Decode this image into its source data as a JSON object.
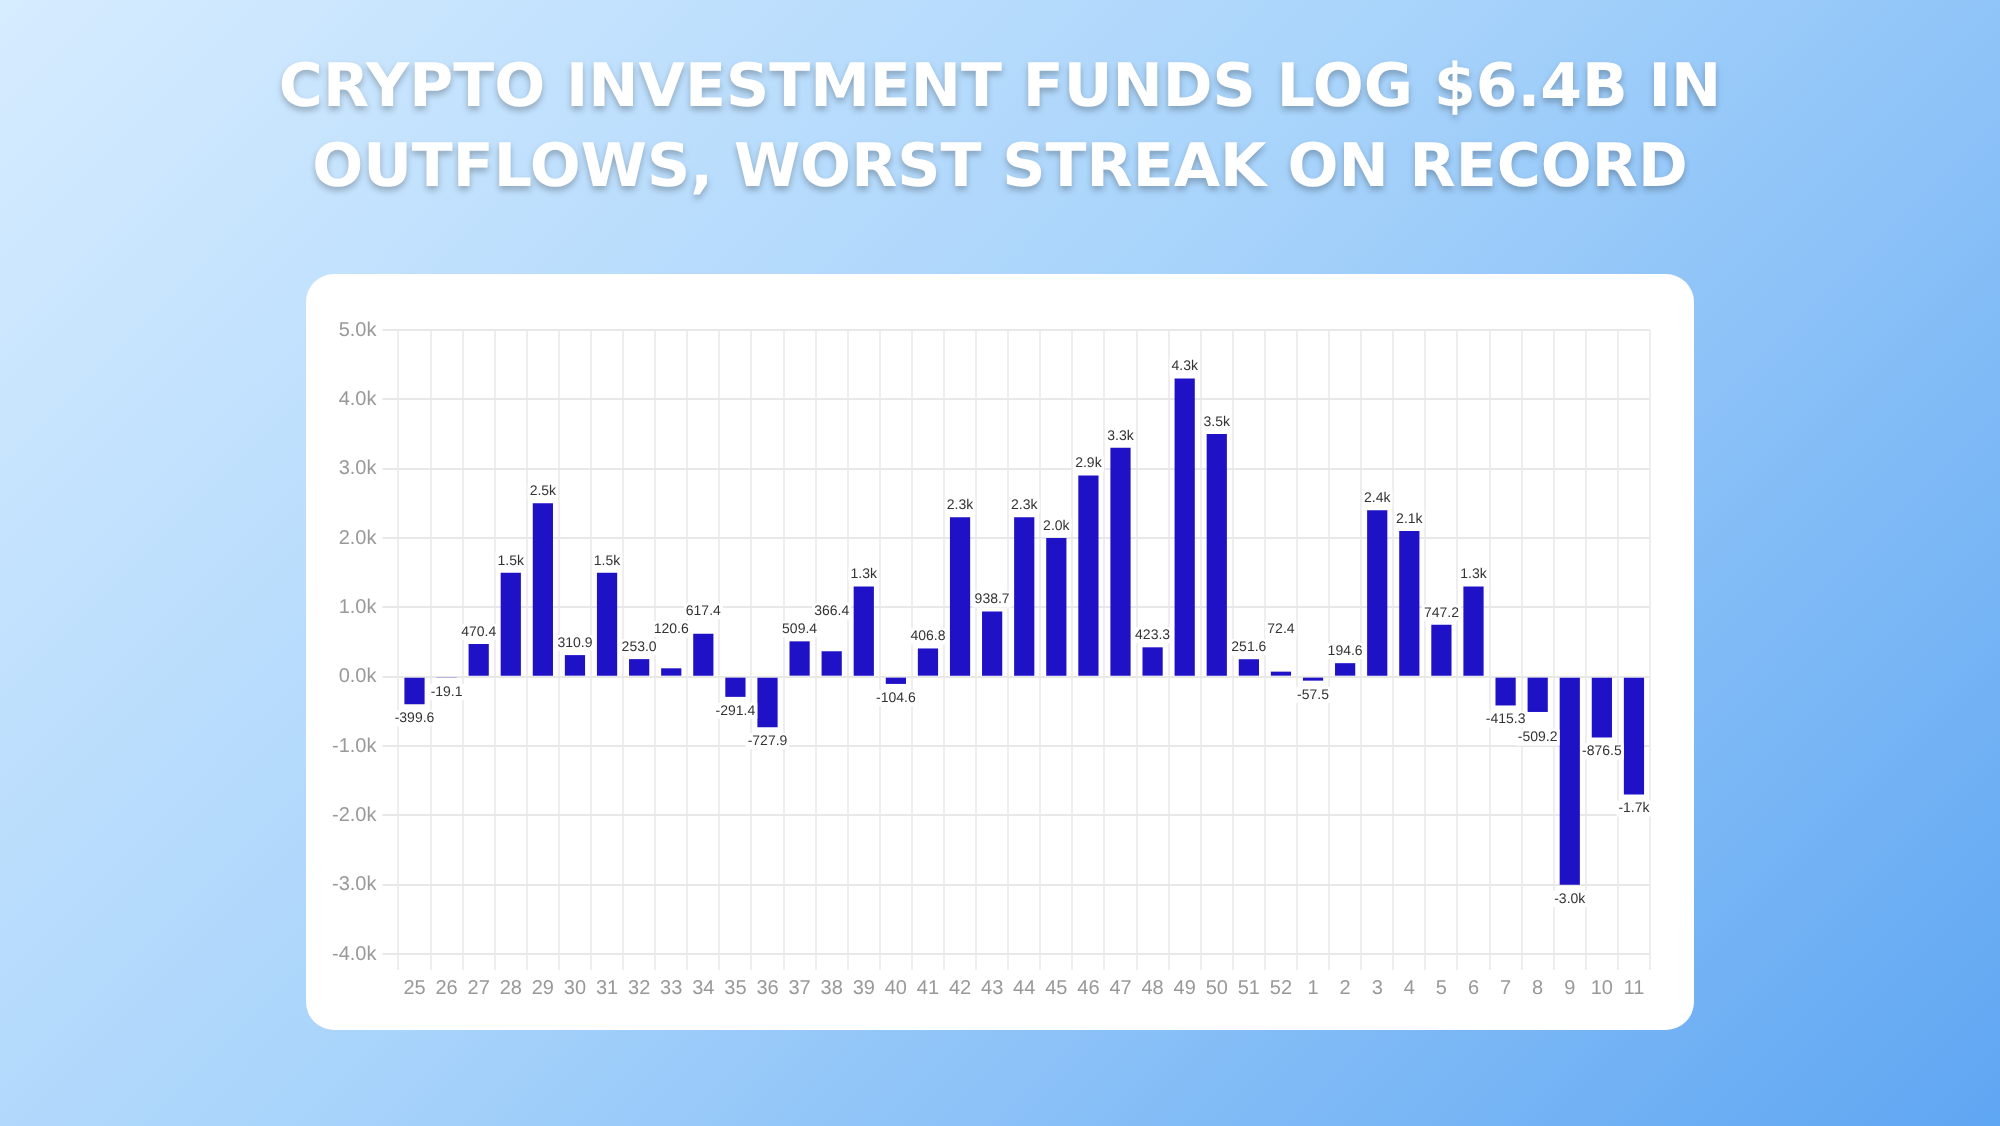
{
  "chart_data": {
    "type": "bar",
    "title": "CRYPTO INVESTMENT FUNDS LOG $6.4B IN OUTFLOWS, WORST STREAK ON RECORD",
    "categories": [
      "25",
      "26",
      "27",
      "28",
      "29",
      "30",
      "31",
      "32",
      "33",
      "34",
      "35",
      "36",
      "37",
      "38",
      "39",
      "40",
      "41",
      "42",
      "43",
      "44",
      "45",
      "46",
      "47",
      "48",
      "49",
      "50",
      "51",
      "52",
      "1",
      "2",
      "3",
      "4",
      "5",
      "6",
      "7",
      "8",
      "9",
      "10",
      "11"
    ],
    "values": [
      -399.6,
      -19.1,
      470.4,
      1500,
      2500,
      310.9,
      1500,
      253.0,
      120.6,
      617.4,
      -291.4,
      -727.9,
      509.4,
      366.4,
      1300,
      -104.6,
      406.8,
      2300,
      938.7,
      2300,
      2000,
      2900,
      3300,
      423.3,
      4300,
      3500,
      251.6,
      72.4,
      -57.5,
      194.6,
      2400,
      2100,
      747.2,
      1300,
      -415.3,
      -509.2,
      -3000,
      -876.5,
      -1700
    ],
    "value_labels": [
      "-399.6",
      "-19.1",
      "470.4",
      "1.5k",
      "2.5k",
      "310.9",
      "1.5k",
      "253.0",
      "120.6",
      "617.4",
      "-291.4",
      "-727.9",
      "509.4",
      "366.4",
      "1.3k",
      "-104.6",
      "406.8",
      "2.3k",
      "938.7",
      "2.3k",
      "2.0k",
      "2.9k",
      "3.3k",
      "423.3",
      "4.3k",
      "3.5k",
      "251.6",
      "72.4",
      "-57.5",
      "194.6",
      "2.4k",
      "2.1k",
      "747.2",
      "1.3k",
      "-415.3",
      "-509.2",
      "-3.0k",
      "-876.5",
      "-1.7k"
    ],
    "color": "#1f12c6",
    "ylim": [
      -4000,
      5000
    ],
    "yticks": [
      {
        "value": -4000,
        "label": "-4.0k"
      },
      {
        "value": -3000,
        "label": "-3.0k"
      },
      {
        "value": -2000,
        "label": "-2.0k"
      },
      {
        "value": -1000,
        "label": "-1.0k"
      },
      {
        "value": 0,
        "label": "0.0k"
      },
      {
        "value": 1000,
        "label": "1.0k"
      },
      {
        "value": 2000,
        "label": "2.0k"
      },
      {
        "value": 3000,
        "label": "3.0k"
      },
      {
        "value": 4000,
        "label": "4.0k"
      },
      {
        "value": 5000,
        "label": "5.0k"
      }
    ],
    "grid": true
  }
}
